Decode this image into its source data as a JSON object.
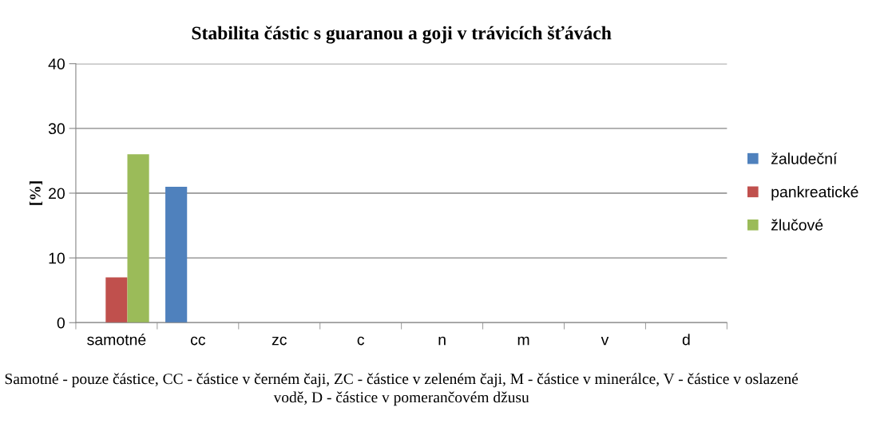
{
  "chart_data": {
    "type": "bar",
    "title": "Stabilita částic s guaranou a goji v trávicích šťávách",
    "ylabel": "[%]",
    "categories": [
      "samotné",
      "cc",
      "zc",
      "c",
      "n",
      "m",
      "v",
      "d"
    ],
    "series": [
      {
        "name": "žaludeční",
        "color": "#4f81bd",
        "values": [
          0,
          21,
          0,
          0,
          0,
          0,
          0,
          0
        ]
      },
      {
        "name": "pankreatické",
        "color": "#c0504d",
        "values": [
          7,
          0,
          0,
          0,
          0,
          0,
          0,
          0
        ]
      },
      {
        "name": "žlučové",
        "color": "#9bbb59",
        "values": [
          26,
          0,
          0,
          0,
          0,
          0,
          0,
          0
        ]
      }
    ],
    "ylim": [
      0,
      40
    ],
    "yticks": [
      0,
      10,
      20,
      30,
      40
    ],
    "grid": "y",
    "legend": "right",
    "annotations": [
      "Samotné - pouze částice, CC - částice v černém čaji, ZC - částice v zeleném čaji, M - částice v minerálce, V - částice v oslazené vodě, D - částice v pomerančovém džusu"
    ]
  }
}
